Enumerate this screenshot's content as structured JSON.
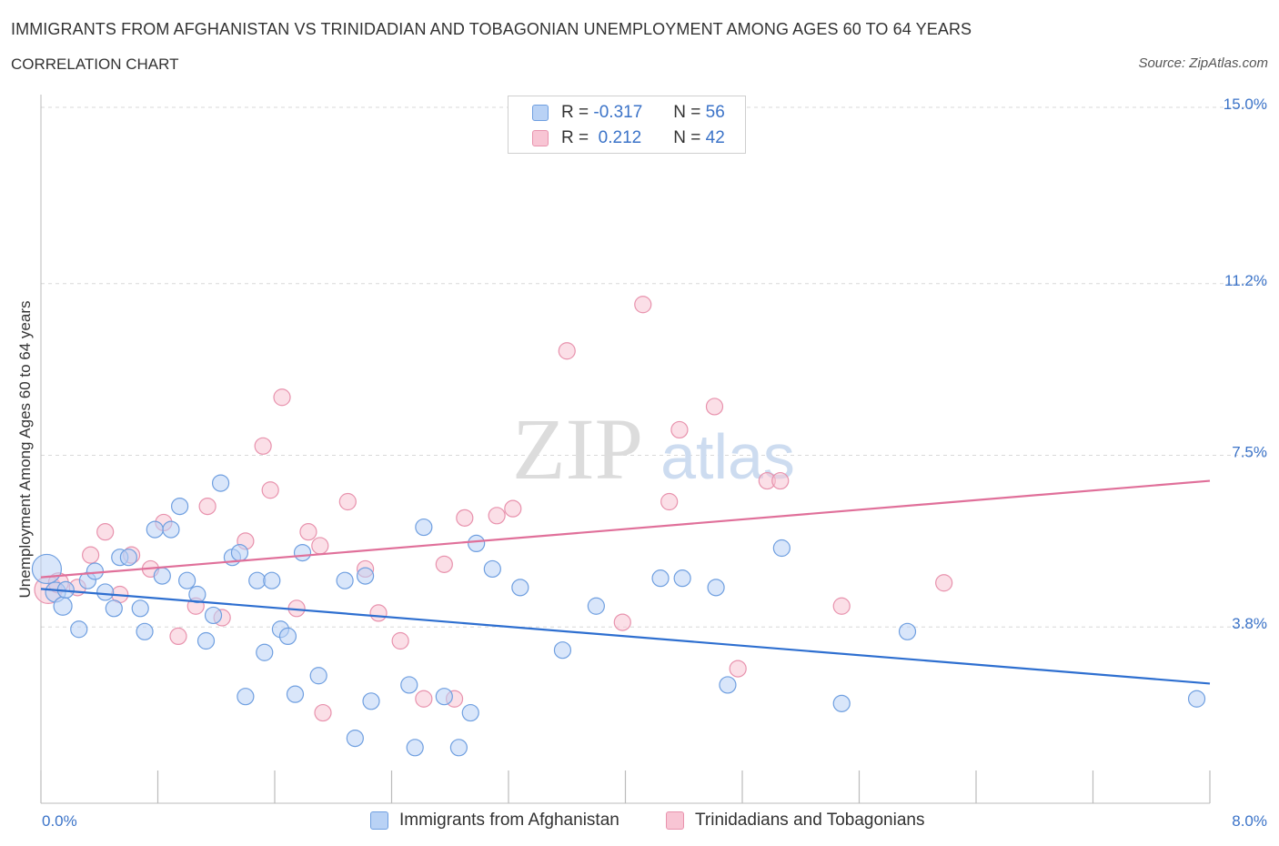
{
  "header": {
    "title": "IMMIGRANTS FROM AFGHANISTAN VS TRINIDADIAN AND TOBAGONIAN UNEMPLOYMENT AMONG AGES 60 TO 64 YEARS",
    "subtitle": "CORRELATION CHART",
    "source": "Source: ZipAtlas.com"
  },
  "watermark": {
    "zip": "ZIP",
    "atlas": "atlas"
  },
  "legend": {
    "r_label": "R =",
    "n_label": "N =",
    "series": [
      {
        "r": "-0.317",
        "n": "56"
      },
      {
        "r": " 0.212",
        "n": "42"
      }
    ]
  },
  "colors": {
    "blue_fill": "#b9d2f5",
    "blue_stroke": "#6f9fe0",
    "blue_line": "#2e6fd0",
    "pink_fill": "#f8c5d4",
    "pink_stroke": "#e892ad",
    "pink_line": "#e0709a",
    "axis_text": "#3b73c8",
    "grid": "#d8d8d8"
  },
  "chart_data": {
    "type": "scatter",
    "ylabel": "Unemployment Among Ages 60 to 64 years",
    "xlim": [
      0,
      8
    ],
    "ylim": [
      0,
      15
    ],
    "x_tick_labels": {
      "left": "0.0%",
      "right": "8.0%"
    },
    "y_ticks": [
      {
        "value": 3.8,
        "label": "3.8%"
      },
      {
        "value": 7.5,
        "label": "7.5%"
      },
      {
        "value": 11.2,
        "label": "11.2%"
      },
      {
        "value": 15.0,
        "label": "15.0%"
      }
    ],
    "series": [
      {
        "name": "Immigrants from Afghanistan",
        "color": "blue",
        "trend": {
          "x0": 0.0,
          "y0": 4.62,
          "x1": 8.0,
          "y1": 2.58
        },
        "points": [
          [
            0.04,
            5.05,
            16
          ],
          [
            0.1,
            4.55,
            11
          ],
          [
            0.15,
            4.25,
            10
          ],
          [
            0.17,
            4.6,
            9
          ],
          [
            0.26,
            3.75,
            9
          ],
          [
            0.32,
            4.8,
            9
          ],
          [
            0.37,
            5.0,
            9
          ],
          [
            0.44,
            4.55,
            9
          ],
          [
            0.5,
            4.2,
            9
          ],
          [
            0.54,
            5.3,
            9
          ],
          [
            0.6,
            5.3,
            9
          ],
          [
            0.68,
            4.2,
            9
          ],
          [
            0.71,
            3.7,
            9
          ],
          [
            0.78,
            5.9,
            9
          ],
          [
            0.83,
            4.9,
            9
          ],
          [
            0.89,
            5.9,
            9
          ],
          [
            0.95,
            6.4,
            9
          ],
          [
            1.0,
            4.8,
            9
          ],
          [
            1.07,
            4.5,
            9
          ],
          [
            1.13,
            3.5,
            9
          ],
          [
            1.18,
            4.05,
            9
          ],
          [
            1.23,
            6.9,
            9
          ],
          [
            1.31,
            5.3,
            9
          ],
          [
            1.36,
            5.4,
            9
          ],
          [
            1.4,
            2.3,
            9
          ],
          [
            1.48,
            4.8,
            9
          ],
          [
            1.53,
            3.25,
            9
          ],
          [
            1.58,
            4.8,
            9
          ],
          [
            1.64,
            3.75,
            9
          ],
          [
            1.69,
            3.6,
            9
          ],
          [
            1.74,
            2.35,
            9
          ],
          [
            1.79,
            5.4,
            9
          ],
          [
            1.9,
            2.75,
            9
          ],
          [
            2.08,
            4.8,
            9
          ],
          [
            2.15,
            1.4,
            9
          ],
          [
            2.22,
            4.9,
            9
          ],
          [
            2.26,
            2.2,
            9
          ],
          [
            2.52,
            2.55,
            9
          ],
          [
            2.56,
            1.2,
            9
          ],
          [
            2.62,
            5.95,
            9
          ],
          [
            2.76,
            2.3,
            9
          ],
          [
            2.86,
            1.2,
            9
          ],
          [
            2.94,
            1.95,
            9
          ],
          [
            2.98,
            5.6,
            9
          ],
          [
            3.09,
            5.05,
            9
          ],
          [
            3.28,
            4.65,
            9
          ],
          [
            3.57,
            3.3,
            9
          ],
          [
            3.8,
            4.25,
            9
          ],
          [
            4.24,
            4.85,
            9
          ],
          [
            4.39,
            4.85,
            9
          ],
          [
            4.62,
            4.65,
            9
          ],
          [
            4.7,
            2.55,
            9
          ],
          [
            5.07,
            5.5,
            9
          ],
          [
            5.48,
            2.15,
            9
          ],
          [
            5.93,
            3.7,
            9
          ],
          [
            7.91,
            2.25,
            9
          ]
        ]
      },
      {
        "name": "Trinidadians and Tobagonians",
        "color": "pink",
        "trend": {
          "x0": 0.0,
          "y0": 4.87,
          "x1": 8.0,
          "y1": 6.95
        },
        "points": [
          [
            0.05,
            4.6,
            15
          ],
          [
            0.12,
            4.75,
            11
          ],
          [
            0.25,
            4.65,
            9
          ],
          [
            0.34,
            5.35,
            9
          ],
          [
            0.44,
            5.85,
            9
          ],
          [
            0.54,
            4.5,
            9
          ],
          [
            0.62,
            5.35,
            9
          ],
          [
            0.75,
            5.05,
            9
          ],
          [
            0.84,
            6.05,
            9
          ],
          [
            0.94,
            3.6,
            9
          ],
          [
            1.06,
            4.25,
            9
          ],
          [
            1.14,
            6.4,
            9
          ],
          [
            1.24,
            4.0,
            9
          ],
          [
            1.4,
            5.65,
            9
          ],
          [
            1.57,
            6.75,
            9
          ],
          [
            1.52,
            7.7,
            9
          ],
          [
            1.65,
            8.75,
            9
          ],
          [
            1.75,
            4.2,
            9
          ],
          [
            1.83,
            5.85,
            9
          ],
          [
            1.91,
            5.55,
            9
          ],
          [
            1.93,
            1.95,
            9
          ],
          [
            2.1,
            6.5,
            9
          ],
          [
            2.22,
            5.05,
            9
          ],
          [
            2.31,
            4.1,
            9
          ],
          [
            2.46,
            3.5,
            9
          ],
          [
            2.62,
            2.25,
            9
          ],
          [
            2.76,
            5.15,
            9
          ],
          [
            2.83,
            2.25,
            9
          ],
          [
            2.9,
            6.15,
            9
          ],
          [
            3.12,
            6.2,
            9
          ],
          [
            3.23,
            6.35,
            9
          ],
          [
            3.6,
            9.75,
            9
          ],
          [
            3.98,
            3.9,
            9
          ],
          [
            4.12,
            10.75,
            9
          ],
          [
            4.3,
            6.5,
            9
          ],
          [
            4.37,
            8.05,
            9
          ],
          [
            4.61,
            8.55,
            9
          ],
          [
            4.77,
            2.9,
            9
          ],
          [
            4.97,
            6.95,
            9
          ],
          [
            5.06,
            6.95,
            9
          ],
          [
            5.48,
            4.25,
            9
          ],
          [
            6.18,
            4.75,
            9
          ]
        ]
      }
    ]
  }
}
